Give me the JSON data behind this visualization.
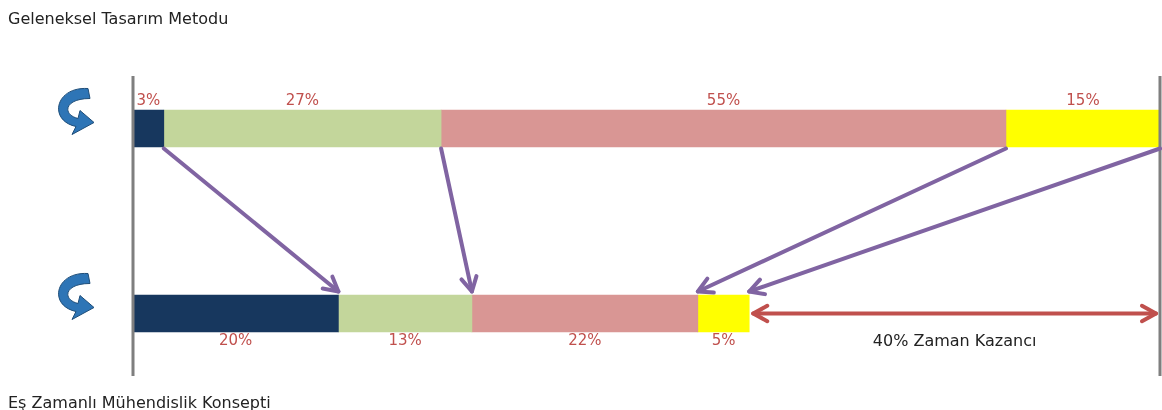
{
  "chart_data": {
    "type": "bar",
    "orientation": "horizontal",
    "stacked": true,
    "categories": [
      null,
      null
    ],
    "series": [
      {
        "color": "#17375e",
        "values": [
          3,
          20
        ],
        "value_labels": [
          "3%",
          "20%"
        ]
      },
      {
        "color": "#c3d69b",
        "values": [
          27,
          13
        ],
        "value_labels": [
          "27%",
          "13%"
        ]
      },
      {
        "color": "#d99694",
        "values": [
          55,
          22
        ],
        "value_labels": [
          "55%",
          "22%"
        ]
      },
      {
        "color": "#ffff00",
        "values": [
          15,
          5
        ],
        "value_labels": [
          "15%",
          "5%"
        ]
      }
    ],
    "xlim": [
      0,
      100
    ],
    "tick_labels": false,
    "legend": false,
    "ref_lines": [
      {
        "axis": "x",
        "value": 100,
        "color": "#7f7f7f"
      }
    ],
    "annotations": [
      "Geleneksel Tasarım Metodu",
      "Eş Zamanlı Mühendislik Konsepti",
      "40% Zaman Kazancı"
    ]
  }
}
